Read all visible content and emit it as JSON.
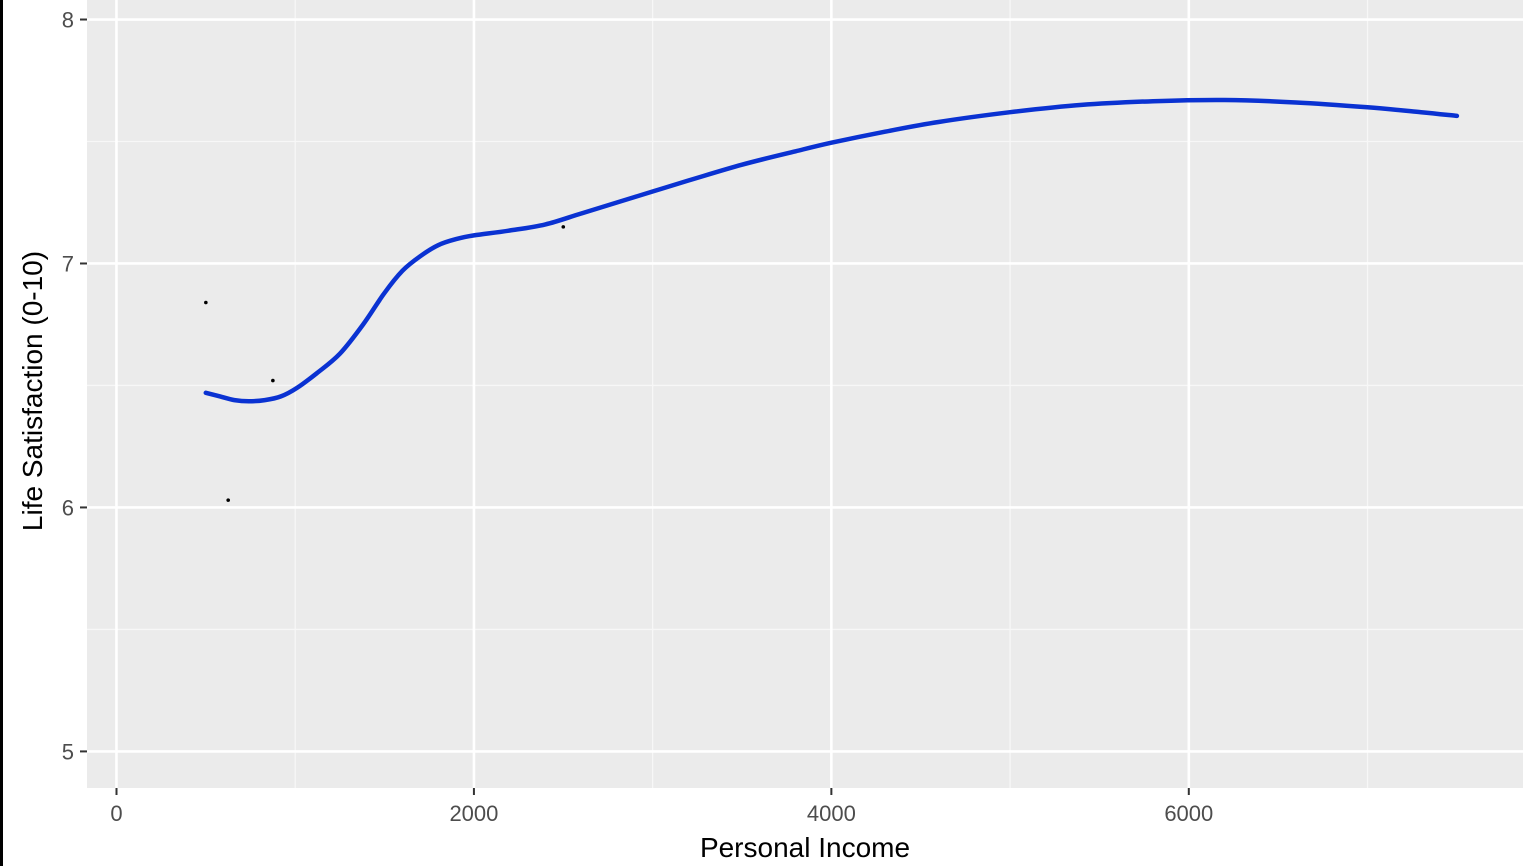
{
  "chart_data": {
    "type": "line",
    "xlabel": "Personal Income",
    "ylabel": "Life Satisfaction (0-10)",
    "xlim": [
      -165,
      7870
    ],
    "ylim": [
      4.85,
      8.08
    ],
    "x_ticks": [
      0,
      2000,
      4000,
      6000
    ],
    "y_ticks": [
      5,
      6,
      7,
      8
    ],
    "grid": true,
    "background_color": "#ebebeb",
    "line_color": "#0a32d2",
    "point_color": "#000000",
    "points": [
      {
        "x": 500,
        "y": 6.84
      },
      {
        "x": 625,
        "y": 6.03
      },
      {
        "x": 875,
        "y": 6.52
      },
      {
        "x": 2500,
        "y": 7.15
      }
    ],
    "smooth_line": [
      {
        "x": 500,
        "y": 6.47
      },
      {
        "x": 580,
        "y": 6.455
      },
      {
        "x": 660,
        "y": 6.44
      },
      {
        "x": 740,
        "y": 6.435
      },
      {
        "x": 830,
        "y": 6.44
      },
      {
        "x": 920,
        "y": 6.455
      },
      {
        "x": 1010,
        "y": 6.49
      },
      {
        "x": 1120,
        "y": 6.55
      },
      {
        "x": 1250,
        "y": 6.63
      },
      {
        "x": 1380,
        "y": 6.75
      },
      {
        "x": 1500,
        "y": 6.88
      },
      {
        "x": 1600,
        "y": 6.97
      },
      {
        "x": 1700,
        "y": 7.03
      },
      {
        "x": 1800,
        "y": 7.075
      },
      {
        "x": 1900,
        "y": 7.1
      },
      {
        "x": 2000,
        "y": 7.115
      },
      {
        "x": 2200,
        "y": 7.135
      },
      {
        "x": 2400,
        "y": 7.16
      },
      {
        "x": 2600,
        "y": 7.205
      },
      {
        "x": 2800,
        "y": 7.25
      },
      {
        "x": 3000,
        "y": 7.295
      },
      {
        "x": 3200,
        "y": 7.34
      },
      {
        "x": 3500,
        "y": 7.405
      },
      {
        "x": 3800,
        "y": 7.46
      },
      {
        "x": 4000,
        "y": 7.495
      },
      {
        "x": 4300,
        "y": 7.54
      },
      {
        "x": 4600,
        "y": 7.58
      },
      {
        "x": 5000,
        "y": 7.62
      },
      {
        "x": 5400,
        "y": 7.65
      },
      {
        "x": 5800,
        "y": 7.665
      },
      {
        "x": 6200,
        "y": 7.67
      },
      {
        "x": 6600,
        "y": 7.66
      },
      {
        "x": 7000,
        "y": 7.64
      },
      {
        "x": 7300,
        "y": 7.62
      },
      {
        "x": 7500,
        "y": 7.605
      }
    ]
  }
}
